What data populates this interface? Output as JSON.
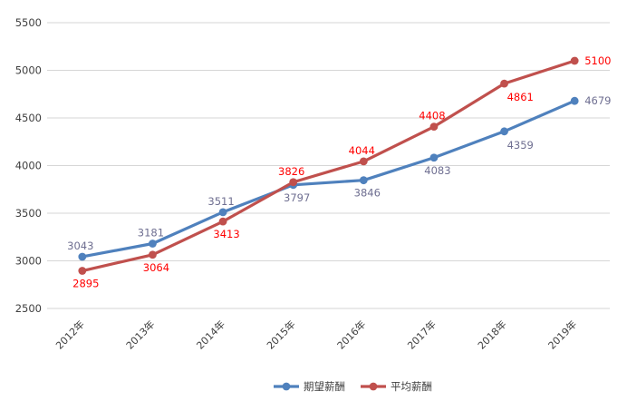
{
  "chart_data": {
    "type": "line",
    "title": "",
    "categories": [
      "2012年",
      "2013年",
      "2014年",
      "2015年",
      "2016年",
      "2017年",
      "2018年",
      "2019年"
    ],
    "series": [
      {
        "id": "expected-salary",
        "name": "期望薪酬",
        "color": "#4F81BD",
        "label_color": "#6F6F91",
        "values": [
          3043,
          3181,
          3511,
          3797,
          3846,
          4083,
          4359,
          4679
        ],
        "label_pos": [
          "above",
          "above",
          "above",
          "below",
          "below",
          "below",
          "below-right",
          "right"
        ]
      },
      {
        "id": "average-salary",
        "name": "平均薪酬",
        "color": "#C0504D",
        "label_color": "#FF0000",
        "values": [
          2895,
          3064,
          3413,
          3826,
          4044,
          4408,
          4861,
          5100
        ],
        "label_pos": [
          "below",
          "below",
          "below",
          "above",
          "above",
          "above",
          "below-right",
          "right"
        ]
      }
    ],
    "y_axis": {
      "min": 2500,
      "max": 5500,
      "step": 500,
      "tick_labels": [
        "2500",
        "3000",
        "3500",
        "4000",
        "4500",
        "5000",
        "5500"
      ]
    },
    "x_axis": {
      "label_rotation_deg": -45
    },
    "grid": true,
    "legend_position": "bottom-center",
    "colors": {
      "gridline": "#D6D6D6",
      "axis_text": "#404040",
      "legend_text": "#404040",
      "background": "#FFFFFF"
    }
  }
}
